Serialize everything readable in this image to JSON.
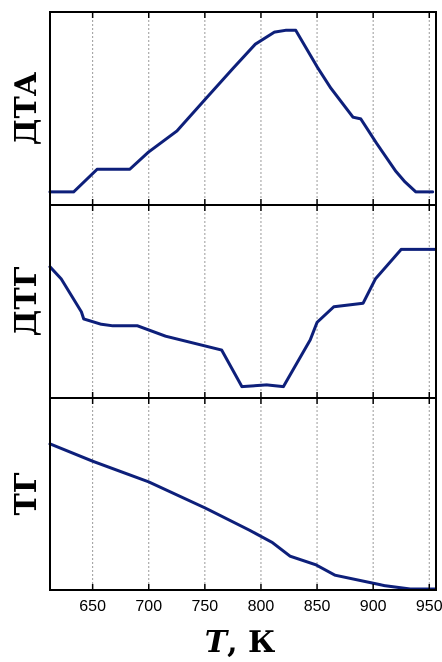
{
  "chart_data": {
    "type": "line",
    "xlabel_var": "T",
    "xlabel_unit": ", К",
    "xlim": [
      612,
      956
    ],
    "xticks": [
      650,
      700,
      750,
      800,
      850,
      900,
      950
    ],
    "grid": true,
    "color": "#0d1f7a",
    "panels": [
      {
        "ylabel": "ДТА",
        "ylim": [
          0,
          1
        ],
        "x": [
          612,
          633,
          654,
          683,
          700,
          725,
          750,
          775,
          795,
          812,
          822,
          831,
          850,
          862,
          882,
          889,
          903,
          920,
          928,
          938,
          953
        ],
        "y": [
          0.02,
          0.02,
          0.15,
          0.15,
          0.25,
          0.37,
          0.55,
          0.73,
          0.87,
          0.94,
          0.95,
          0.95,
          0.74,
          0.62,
          0.45,
          0.44,
          0.3,
          0.14,
          0.08,
          0.02,
          0.02
        ]
      },
      {
        "ylabel": "ДТГ",
        "ylim": [
          0,
          1
        ],
        "x": [
          612,
          622,
          640,
          642,
          657,
          668,
          690,
          715,
          765,
          783,
          805,
          820,
          844,
          850,
          865,
          891,
          902,
          925,
          955
        ],
        "y": [
          0.7,
          0.63,
          0.44,
          0.4,
          0.37,
          0.36,
          0.36,
          0.3,
          0.22,
          0.01,
          0.02,
          0.01,
          0.28,
          0.38,
          0.47,
          0.49,
          0.63,
          0.8,
          0.8
        ]
      },
      {
        "ylabel": "ТГ",
        "ylim": [
          0,
          1
        ],
        "x": [
          612,
          650,
          700,
          750,
          790,
          810,
          826,
          849,
          866,
          910,
          933,
          955
        ],
        "y": [
          0.79,
          0.69,
          0.57,
          0.42,
          0.29,
          0.22,
          0.14,
          0.09,
          0.03,
          -0.03,
          -0.05,
          -0.05
        ]
      }
    ]
  }
}
